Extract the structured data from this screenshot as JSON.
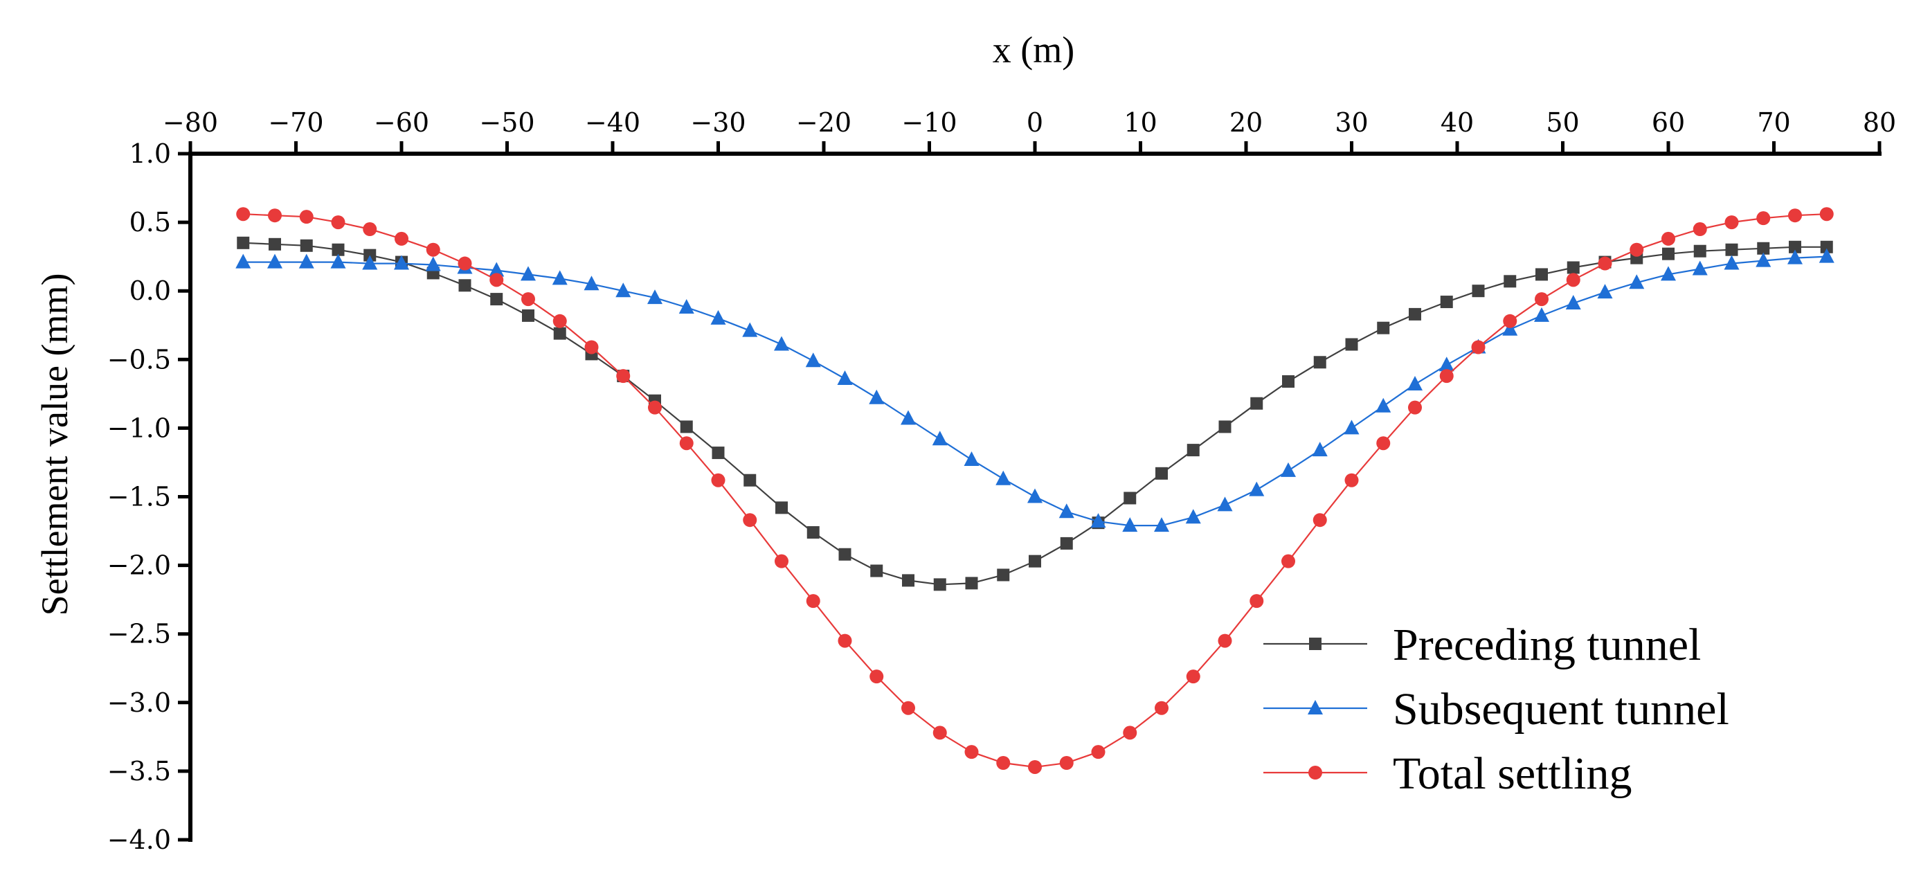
{
  "chart_data": {
    "type": "line",
    "title": "",
    "xlabel": "x (m)",
    "ylabel": "Settlement value (mm)",
    "xlim": [
      -80,
      80
    ],
    "ylim": [
      -4.0,
      1.0
    ],
    "x_ticks": [
      -80,
      -70,
      -60,
      -50,
      -40,
      -30,
      -20,
      -10,
      0,
      10,
      20,
      30,
      40,
      50,
      60,
      70,
      80
    ],
    "x_tick_labels": [
      "−80",
      "−70",
      "−60",
      "−50",
      "−40",
      "−30",
      "−20",
      "−10",
      "0",
      "10",
      "20",
      "30",
      "40",
      "50",
      "60",
      "70",
      "80"
    ],
    "y_ticks": [
      1.0,
      0.5,
      0.0,
      -0.5,
      -1.0,
      -1.5,
      -2.0,
      -2.5,
      -3.0,
      -3.5,
      -4.0
    ],
    "y_tick_labels": [
      "1.0",
      "0.5",
      "0.0",
      "−0.5",
      "−1.0",
      "−1.5",
      "−2.0",
      "−2.5",
      "−3.0",
      "−3.5",
      "−4.0"
    ],
    "x_axis_position": "top",
    "legend_position": "bottom-right",
    "grid": false,
    "x": [
      -75,
      -72,
      -69,
      -66,
      -63,
      -60,
      -57,
      -54,
      -51,
      -48,
      -45,
      -42,
      -39,
      -36,
      -33,
      -30,
      -27,
      -24,
      -21,
      -18,
      -15,
      -12,
      -9,
      -6,
      -3,
      0,
      3,
      6,
      9,
      12,
      15,
      18,
      21,
      24,
      27,
      30,
      33,
      36,
      39,
      42,
      45,
      48,
      51,
      54,
      57,
      60,
      63,
      66,
      69,
      72,
      75
    ],
    "series": [
      {
        "name": "Preceding tunnel",
        "color": "#404040",
        "marker": "square",
        "values": [
          0.35,
          0.34,
          0.33,
          0.3,
          0.26,
          0.21,
          0.13,
          0.04,
          -0.06,
          -0.18,
          -0.31,
          -0.46,
          -0.62,
          -0.8,
          -0.99,
          -1.18,
          -1.38,
          -1.58,
          -1.76,
          -1.92,
          -2.04,
          -2.11,
          -2.14,
          -2.13,
          -2.07,
          -1.97,
          -1.84,
          -1.69,
          -1.51,
          -1.33,
          -1.16,
          -0.99,
          -0.82,
          -0.66,
          -0.52,
          -0.39,
          -0.27,
          -0.17,
          -0.08,
          0.0,
          0.07,
          0.12,
          0.17,
          0.21,
          0.24,
          0.27,
          0.29,
          0.3,
          0.31,
          0.32,
          0.32
        ]
      },
      {
        "name": "Subsequent tunnel",
        "color": "#1f6fd6",
        "marker": "triangle",
        "values": [
          0.21,
          0.21,
          0.21,
          0.21,
          0.2,
          0.2,
          0.19,
          0.17,
          0.15,
          0.12,
          0.09,
          0.05,
          0.0,
          -0.05,
          -0.12,
          -0.2,
          -0.29,
          -0.39,
          -0.51,
          -0.64,
          -0.78,
          -0.93,
          -1.08,
          -1.23,
          -1.37,
          -1.5,
          -1.61,
          -1.68,
          -1.71,
          -1.71,
          -1.65,
          -1.56,
          -1.45,
          -1.31,
          -1.16,
          -1.0,
          -0.84,
          -0.68,
          -0.54,
          -0.41,
          -0.28,
          -0.18,
          -0.09,
          -0.01,
          0.06,
          0.12,
          0.16,
          0.2,
          0.22,
          0.24,
          0.25
        ]
      },
      {
        "name": "Total settling",
        "color": "#e83a3a",
        "marker": "circle",
        "values": [
          0.56,
          0.55,
          0.54,
          0.5,
          0.45,
          0.38,
          0.3,
          0.2,
          0.08,
          -0.06,
          -0.22,
          -0.41,
          -0.62,
          -0.85,
          -1.11,
          -1.38,
          -1.67,
          -1.97,
          -2.26,
          -2.55,
          -2.81,
          -3.04,
          -3.22,
          -3.36,
          -3.44,
          -3.47,
          -3.44,
          -3.36,
          -3.22,
          -3.04,
          -2.81,
          -2.55,
          -2.26,
          -1.97,
          -1.67,
          -1.38,
          -1.11,
          -0.85,
          -0.62,
          -0.41,
          -0.22,
          -0.06,
          0.08,
          0.2,
          0.3,
          0.38,
          0.45,
          0.5,
          0.53,
          0.55,
          0.56
        ]
      }
    ]
  }
}
